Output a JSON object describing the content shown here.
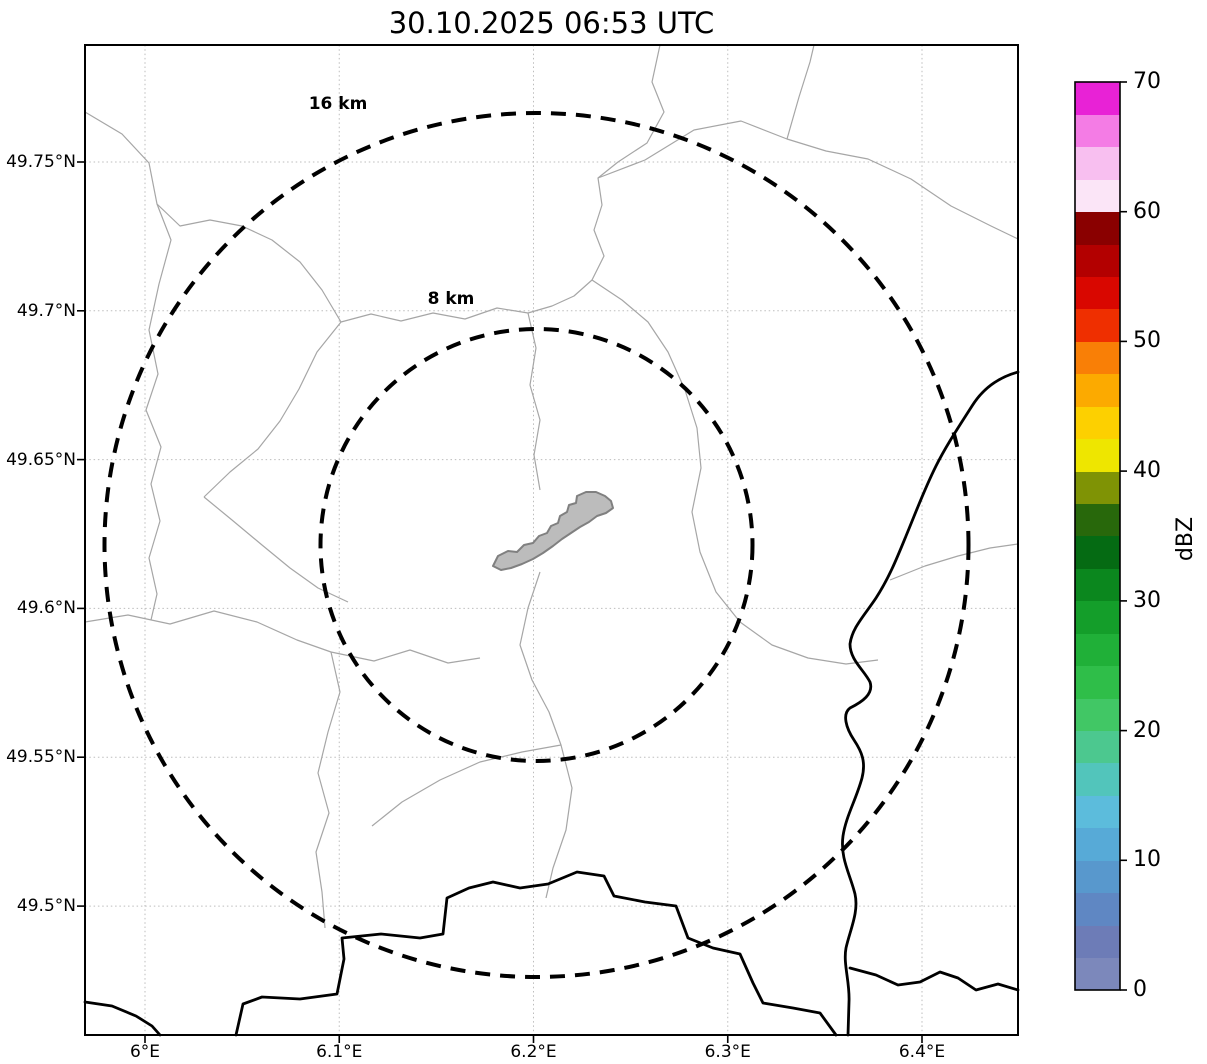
{
  "chart_data": {
    "type": "map",
    "title": "30.10.2025 06:53 UTC",
    "grid": true,
    "x_axis": {
      "tick_labels": [
        "6°E",
        "6.1°E",
        "6.2°E",
        "6.3°E",
        "6.4°E"
      ],
      "tick_values": [
        6.0,
        6.1,
        6.2,
        6.3,
        6.4
      ]
    },
    "y_axis": {
      "tick_labels": [
        "49.75°N",
        "49.7°N",
        "49.65°N",
        "49.6°N",
        "49.55°N",
        "49.5°N"
      ],
      "tick_values": [
        49.75,
        49.7,
        49.65,
        49.6,
        49.55,
        49.5
      ]
    },
    "range_rings": [
      {
        "label": "8 km",
        "radius_km": 8
      },
      {
        "label": "16 km",
        "radius_km": 16
      }
    ],
    "colorbar": {
      "label": "dBZ",
      "min": 0,
      "max": 70,
      "tick_labels": [
        "0",
        "10",
        "20",
        "30",
        "40",
        "50",
        "60",
        "70"
      ],
      "tick_values": [
        0,
        10,
        20,
        30,
        40,
        50,
        60,
        70
      ],
      "segments_bottom_to_top": [
        "#7c88bb",
        "#6d7cb7",
        "#5f87c3",
        "#5898cd",
        "#57aad7",
        "#5cbcdc",
        "#52c5bb",
        "#4cc88f",
        "#41c765",
        "#2fbe49",
        "#20b038",
        "#149e2a",
        "#0b871e",
        "#056b13",
        "#28680b",
        "#7f9305",
        "#eee600",
        "#fdd000",
        "#fcaa00",
        "#f97f06",
        "#ef2f00",
        "#d90700",
        "#b30000",
        "#8a0000",
        "#fbe5f7",
        "#f8bff0",
        "#f47ce5",
        "#e822d6"
      ]
    },
    "style_colors": {
      "country_border": "#000000",
      "admin_border": "#a6a6a6",
      "urban_area_fill": "#bcbcbc",
      "range_ring": "#000000",
      "gridline": "#bdbdbd"
    }
  }
}
